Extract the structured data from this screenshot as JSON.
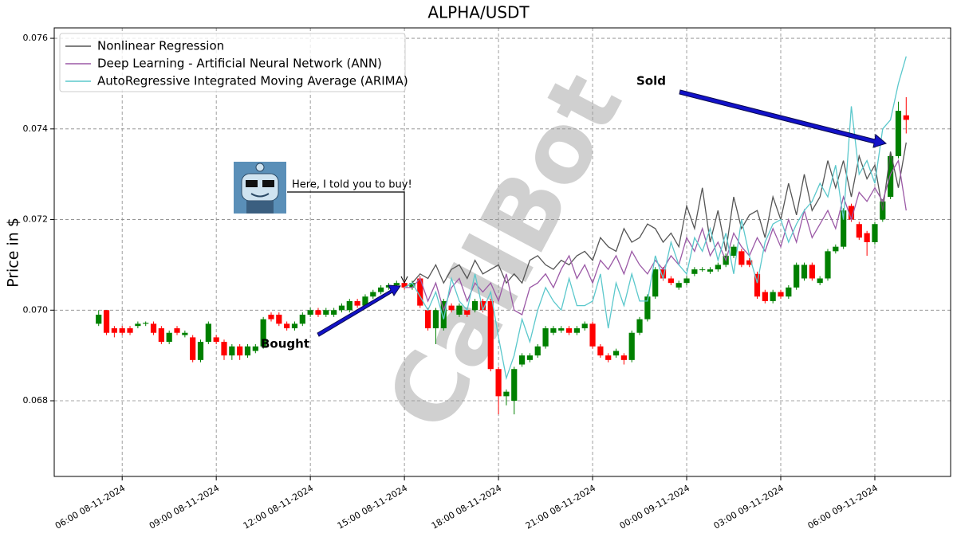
{
  "chart_data": {
    "type": "candlestick",
    "title": "ALPHA/USDT",
    "y_label": "Price in $",
    "watermark": "CallBot",
    "annotations": [
      {
        "text": "Bought"
      },
      {
        "text": "Sold"
      },
      {
        "text": "Here, I told you to buy!"
      }
    ],
    "up_color": "#008000",
    "down_color": "#ff0000",
    "grid": true,
    "legend": "upper left",
    "xlim": [
      "2024-11-08T03:50",
      "2024-11-09T08:25"
    ],
    "xticks": [
      {
        "value": "2024-11-08T06:00",
        "label": "06:00 08-11-2024"
      },
      {
        "value": "2024-11-08T09:00",
        "label": "09:00 08-11-2024"
      },
      {
        "value": "2024-11-08T12:00",
        "label": "12:00 08-11-2024"
      },
      {
        "value": "2024-11-08T15:00",
        "label": "15:00 08-11-2024"
      },
      {
        "value": "2024-11-08T18:00",
        "label": "18:00 08-11-2024"
      },
      {
        "value": "2024-11-08T21:00",
        "label": "21:00 08-11-2024"
      },
      {
        "value": "2024-11-09T00:00",
        "label": "00:00 09-11-2024"
      },
      {
        "value": "2024-11-09T03:00",
        "label": "03:00 09-11-2024"
      },
      {
        "value": "2024-11-09T06:00",
        "label": "06:00 09-11-2024"
      }
    ],
    "ylim": [
      0.06633,
      0.07623
    ],
    "yticks": [
      0.068,
      {
        "value": 0.07,
        "label": "0.070"
      },
      0.072,
      0.074,
      0.076
    ],
    "x": [
      "2024-11-08T05:15",
      "2024-11-08T05:30",
      "2024-11-08T05:45",
      "2024-11-08T06:00",
      "2024-11-08T06:15",
      "2024-11-08T06:30",
      "2024-11-08T06:45",
      "2024-11-08T07:00",
      "2024-11-08T07:15",
      "2024-11-08T07:30",
      "2024-11-08T07:45",
      "2024-11-08T08:00",
      "2024-11-08T08:15",
      "2024-11-08T08:30",
      "2024-11-08T08:45",
      "2024-11-08T09:00",
      "2024-11-08T09:15",
      "2024-11-08T09:30",
      "2024-11-08T09:45",
      "2024-11-08T10:00",
      "2024-11-08T10:15",
      "2024-11-08T10:30",
      "2024-11-08T10:45",
      "2024-11-08T11:00",
      "2024-11-08T11:15",
      "2024-11-08T11:30",
      "2024-11-08T11:45",
      "2024-11-08T12:00",
      "2024-11-08T12:15",
      "2024-11-08T12:30",
      "2024-11-08T12:45",
      "2024-11-08T13:00",
      "2024-11-08T13:15",
      "2024-11-08T13:30",
      "2024-11-08T13:45",
      "2024-11-08T14:00",
      "2024-11-08T14:15",
      "2024-11-08T14:30",
      "2024-11-08T14:45",
      "2024-11-08T15:00",
      "2024-11-08T15:15",
      "2024-11-08T15:30",
      "2024-11-08T15:45",
      "2024-11-08T16:00",
      "2024-11-08T16:15",
      "2024-11-08T16:30",
      "2024-11-08T16:45",
      "2024-11-08T17:00",
      "2024-11-08T17:15",
      "2024-11-08T17:30",
      "2024-11-08T17:45",
      "2024-11-08T18:00",
      "2024-11-08T18:15",
      "2024-11-08T18:30",
      "2024-11-08T18:45",
      "2024-11-08T19:00",
      "2024-11-08T19:15",
      "2024-11-08T19:30",
      "2024-11-08T19:45",
      "2024-11-08T20:00",
      "2024-11-08T20:15",
      "2024-11-08T20:30",
      "2024-11-08T20:45",
      "2024-11-08T21:00",
      "2024-11-08T21:15",
      "2024-11-08T21:30",
      "2024-11-08T21:45",
      "2024-11-08T22:00",
      "2024-11-08T22:15",
      "2024-11-08T22:30",
      "2024-11-08T22:45",
      "2024-11-08T23:00",
      "2024-11-08T23:15",
      "2024-11-08T23:30",
      "2024-11-08T23:45",
      "2024-11-09T00:00",
      "2024-11-09T00:15",
      "2024-11-09T00:30",
      "2024-11-09T00:45",
      "2024-11-09T01:00",
      "2024-11-09T01:15",
      "2024-11-09T01:30",
      "2024-11-09T01:45",
      "2024-11-09T02:00",
      "2024-11-09T02:15",
      "2024-11-09T02:30",
      "2024-11-09T02:45",
      "2024-11-09T03:00",
      "2024-11-09T03:15",
      "2024-11-09T03:30",
      "2024-11-09T03:45",
      "2024-11-09T04:00",
      "2024-11-09T04:15",
      "2024-11-09T04:30",
      "2024-11-09T04:45",
      "2024-11-09T05:00",
      "2024-11-09T05:15",
      "2024-11-09T05:30",
      "2024-11-09T05:45",
      "2024-11-09T06:00",
      "2024-11-09T06:15",
      "2024-11-09T06:30",
      "2024-11-09T06:45",
      "2024-11-09T07:00"
    ],
    "ohlc": {
      "open": [
        0.0697,
        0.07,
        0.0696,
        0.0696,
        0.0696,
        0.06965,
        0.0697,
        0.0697,
        0.0696,
        0.0693,
        0.0696,
        0.06945,
        0.0694,
        0.0689,
        0.0693,
        0.0694,
        0.0693,
        0.069,
        0.0692,
        0.069,
        0.0691,
        0.0692,
        0.0699,
        0.0699,
        0.0697,
        0.0696,
        0.0697,
        0.0699,
        0.07,
        0.0699,
        0.0699,
        0.07,
        0.07,
        0.0702,
        0.0701,
        0.0703,
        0.0704,
        0.0705,
        0.07055,
        0.0706,
        0.0705,
        0.0707,
        0.07,
        0.0696,
        0.0696,
        0.0701,
        0.0699,
        0.07,
        0.07,
        0.0702,
        0.0702,
        0.0687,
        0.0681,
        0.068,
        0.0688,
        0.0689,
        0.069,
        0.0692,
        0.0695,
        0.06955,
        0.0696,
        0.0695,
        0.0696,
        0.0697,
        0.0692,
        0.069,
        0.069,
        0.069,
        0.0689,
        0.0695,
        0.0698,
        0.0703,
        0.0709,
        0.0707,
        0.0705,
        0.0706,
        0.0708,
        0.0709,
        0.07085,
        0.0709,
        0.071,
        0.0712,
        0.0713,
        0.0711,
        0.0708,
        0.0704,
        0.0702,
        0.0704,
        0.0703,
        0.0705,
        0.0707,
        0.071,
        0.0706,
        0.0707,
        0.0713,
        0.0714,
        0.0723,
        0.0719,
        0.0717,
        0.0715,
        0.072,
        0.0725,
        0.0734,
        0.0743
      ],
      "high": [
        0.07,
        0.07,
        0.06965,
        0.06965,
        0.06965,
        0.06975,
        0.06975,
        0.06975,
        0.06965,
        0.06955,
        0.06965,
        0.06955,
        0.06945,
        0.06935,
        0.06975,
        0.06945,
        0.06935,
        0.06925,
        0.06925,
        0.06925,
        0.06925,
        0.06985,
        0.06995,
        0.06995,
        0.06975,
        0.06975,
        0.06995,
        0.07005,
        0.07005,
        0.07005,
        0.07005,
        0.07015,
        0.07025,
        0.07025,
        0.07035,
        0.07045,
        0.07055,
        0.0706,
        0.07065,
        0.07065,
        0.07065,
        0.07075,
        0.07005,
        0.07005,
        0.07025,
        0.07015,
        0.07015,
        0.07005,
        0.07025,
        0.07025,
        0.07025,
        0.06875,
        0.06825,
        0.06875,
        0.06905,
        0.06905,
        0.06925,
        0.06965,
        0.06965,
        0.06965,
        0.06965,
        0.06965,
        0.06975,
        0.06975,
        0.06925,
        0.06905,
        0.06915,
        0.06905,
        0.06955,
        0.06985,
        0.07035,
        0.07095,
        0.07095,
        0.07075,
        0.07065,
        0.07075,
        0.07095,
        0.07095,
        0.07095,
        0.07105,
        0.07125,
        0.07145,
        0.07135,
        0.07115,
        0.07085,
        0.07045,
        0.07045,
        0.07045,
        0.07055,
        0.07105,
        0.07105,
        0.07105,
        0.07075,
        0.07135,
        0.07145,
        0.07225,
        0.07235,
        0.07195,
        0.07175,
        0.07195,
        0.07245,
        0.07345,
        0.0746,
        0.0747
      ],
      "low": [
        0.06965,
        0.06945,
        0.0694,
        0.06945,
        0.06945,
        0.0696,
        0.06965,
        0.06945,
        0.06925,
        0.06925,
        0.06945,
        0.0694,
        0.06885,
        0.06885,
        0.06925,
        0.06925,
        0.0689,
        0.0689,
        0.0689,
        0.06895,
        0.06905,
        0.06915,
        0.06975,
        0.06965,
        0.06955,
        0.06955,
        0.06965,
        0.06985,
        0.06985,
        0.06985,
        0.06985,
        0.06995,
        0.06995,
        0.07005,
        0.07005,
        0.07025,
        0.07035,
        0.07045,
        0.0705,
        0.07045,
        0.07045,
        0.07005,
        0.06955,
        0.06925,
        0.06955,
        0.06995,
        0.06985,
        0.06985,
        0.06995,
        0.06995,
        0.06865,
        0.0677,
        0.0679,
        0.0677,
        0.06875,
        0.06885,
        0.06895,
        0.06915,
        0.06945,
        0.0695,
        0.06945,
        0.06945,
        0.06955,
        0.06915,
        0.06895,
        0.06885,
        0.06895,
        0.0688,
        0.06885,
        0.06945,
        0.06975,
        0.07025,
        0.07065,
        0.07055,
        0.07045,
        0.07055,
        0.07075,
        0.07085,
        0.0708,
        0.07085,
        0.07095,
        0.07115,
        0.07095,
        0.07095,
        0.07025,
        0.07015,
        0.07015,
        0.07025,
        0.07025,
        0.07045,
        0.07065,
        0.07065,
        0.07055,
        0.07065,
        0.07125,
        0.07135,
        0.07195,
        0.07155,
        0.0712,
        0.07145,
        0.07195,
        0.07245,
        0.07335,
        0.0739
      ],
      "close": [
        0.0699,
        0.0695,
        0.0695,
        0.0695,
        0.0695,
        0.0697,
        0.06972,
        0.0695,
        0.0693,
        0.0695,
        0.0695,
        0.0695,
        0.0689,
        0.0693,
        0.0697,
        0.0693,
        0.069,
        0.0692,
        0.069,
        0.0692,
        0.0692,
        0.0698,
        0.0698,
        0.0697,
        0.0696,
        0.0697,
        0.0699,
        0.07,
        0.0699,
        0.07,
        0.07,
        0.0701,
        0.0702,
        0.0701,
        0.0703,
        0.0704,
        0.0705,
        0.07055,
        0.0706,
        0.0705,
        0.0706,
        0.0701,
        0.0696,
        0.07,
        0.0702,
        0.07,
        0.0701,
        0.0699,
        0.0702,
        0.07,
        0.0687,
        0.0681,
        0.0682,
        0.0687,
        0.069,
        0.069,
        0.0692,
        0.0696,
        0.0696,
        0.0696,
        0.0695,
        0.0696,
        0.0697,
        0.0692,
        0.069,
        0.0689,
        0.0691,
        0.0689,
        0.0695,
        0.0698,
        0.0703,
        0.0709,
        0.0707,
        0.0706,
        0.0706,
        0.0707,
        0.0709,
        0.0709,
        0.0709,
        0.071,
        0.0712,
        0.0714,
        0.071,
        0.071,
        0.0703,
        0.0702,
        0.0704,
        0.0703,
        0.0705,
        0.071,
        0.071,
        0.0707,
        0.0707,
        0.0713,
        0.0714,
        0.0722,
        0.072,
        0.0716,
        0.0715,
        0.0719,
        0.0724,
        0.0734,
        0.0744,
        0.0742
      ]
    },
    "series": [
      {
        "name": "Nonlinear Regression",
        "color": "#555555",
        "values": [
          null,
          null,
          null,
          null,
          null,
          null,
          null,
          null,
          null,
          null,
          null,
          null,
          null,
          null,
          null,
          null,
          null,
          null,
          null,
          null,
          null,
          null,
          null,
          null,
          null,
          null,
          null,
          null,
          null,
          null,
          null,
          null,
          null,
          null,
          null,
          null,
          null,
          null,
          null,
          0.0705,
          0.0706,
          0.0708,
          0.0707,
          0.071,
          0.0706,
          0.0709,
          0.071,
          0.0707,
          0.0711,
          0.0708,
          0.0709,
          0.071,
          0.0706,
          0.0708,
          0.0706,
          0.0711,
          0.0712,
          0.071,
          0.0709,
          0.0711,
          0.071,
          0.0712,
          0.0713,
          0.0711,
          0.0716,
          0.0714,
          0.0713,
          0.0718,
          0.0715,
          0.0716,
          0.0719,
          0.0718,
          0.0715,
          0.0717,
          0.0714,
          0.0723,
          0.0718,
          0.0727,
          0.0715,
          0.0722,
          0.0713,
          0.0725,
          0.0718,
          0.0721,
          0.0722,
          0.0716,
          0.0725,
          0.072,
          0.0728,
          0.0721,
          0.073,
          0.0722,
          0.0725,
          0.0733,
          0.0727,
          0.0733,
          0.0725,
          0.0734,
          0.0729,
          0.0732,
          0.0722,
          0.0735,
          0.0727,
          0.0737
        ]
      },
      {
        "name": "Deep Learning - Artificial Neural Network (ANN)",
        "color": "#9b59a6",
        "values": [
          null,
          null,
          null,
          null,
          null,
          null,
          null,
          null,
          null,
          null,
          null,
          null,
          null,
          null,
          null,
          null,
          null,
          null,
          null,
          null,
          null,
          null,
          null,
          null,
          null,
          null,
          null,
          null,
          null,
          null,
          null,
          null,
          null,
          null,
          null,
          null,
          null,
          null,
          null,
          0.0705,
          0.0705,
          0.0707,
          0.0702,
          0.0706,
          0.07,
          0.0705,
          0.0707,
          0.0702,
          0.0706,
          0.0704,
          0.0706,
          0.0702,
          0.0708,
          0.07,
          0.0699,
          0.0705,
          0.0706,
          0.0708,
          0.0705,
          0.0709,
          0.0712,
          0.0707,
          0.071,
          0.0706,
          0.0711,
          0.0709,
          0.0712,
          0.0708,
          0.0713,
          0.071,
          0.0708,
          0.0711,
          0.0709,
          0.0712,
          0.071,
          0.0716,
          0.0713,
          0.0718,
          0.0712,
          0.0715,
          0.0711,
          0.0717,
          0.0714,
          0.0712,
          0.0716,
          0.0713,
          0.0718,
          0.0714,
          0.072,
          0.0715,
          0.0722,
          0.0716,
          0.0719,
          0.0722,
          0.0718,
          0.0725,
          0.072,
          0.0726,
          0.0724,
          0.0727,
          0.0724,
          0.073,
          0.0733,
          0.0722
        ]
      },
      {
        "name": "AutoRegressive Integrated Moving Average (ARIMA)",
        "color": "#5bc8cc",
        "values": [
          null,
          null,
          null,
          null,
          null,
          null,
          null,
          null,
          null,
          null,
          null,
          null,
          null,
          null,
          null,
          null,
          null,
          null,
          null,
          null,
          null,
          null,
          null,
          null,
          null,
          null,
          null,
          null,
          null,
          null,
          null,
          null,
          null,
          null,
          null,
          null,
          null,
          null,
          null,
          0.0705,
          0.0706,
          0.0703,
          0.07,
          0.0704,
          0.0698,
          0.0707,
          0.0702,
          0.07,
          0.0708,
          0.07,
          0.0704,
          0.0694,
          0.0685,
          0.069,
          0.0698,
          0.0693,
          0.07,
          0.0705,
          0.0702,
          0.07,
          0.0707,
          0.0701,
          0.0701,
          0.0702,
          0.0708,
          0.0696,
          0.0706,
          0.0701,
          0.0708,
          0.0702,
          0.0702,
          0.0712,
          0.0707,
          0.0715,
          0.071,
          0.0708,
          0.0716,
          0.0713,
          0.0718,
          0.0711,
          0.0717,
          0.0708,
          0.072,
          0.0712,
          0.0706,
          0.0715,
          0.0719,
          0.072,
          0.0715,
          0.0719,
          0.0722,
          0.0724,
          0.0728,
          0.0725,
          0.0732,
          0.072,
          0.0745,
          0.073,
          0.0733,
          0.0728,
          0.074,
          0.0742,
          0.075,
          0.0756
        ]
      }
    ]
  }
}
